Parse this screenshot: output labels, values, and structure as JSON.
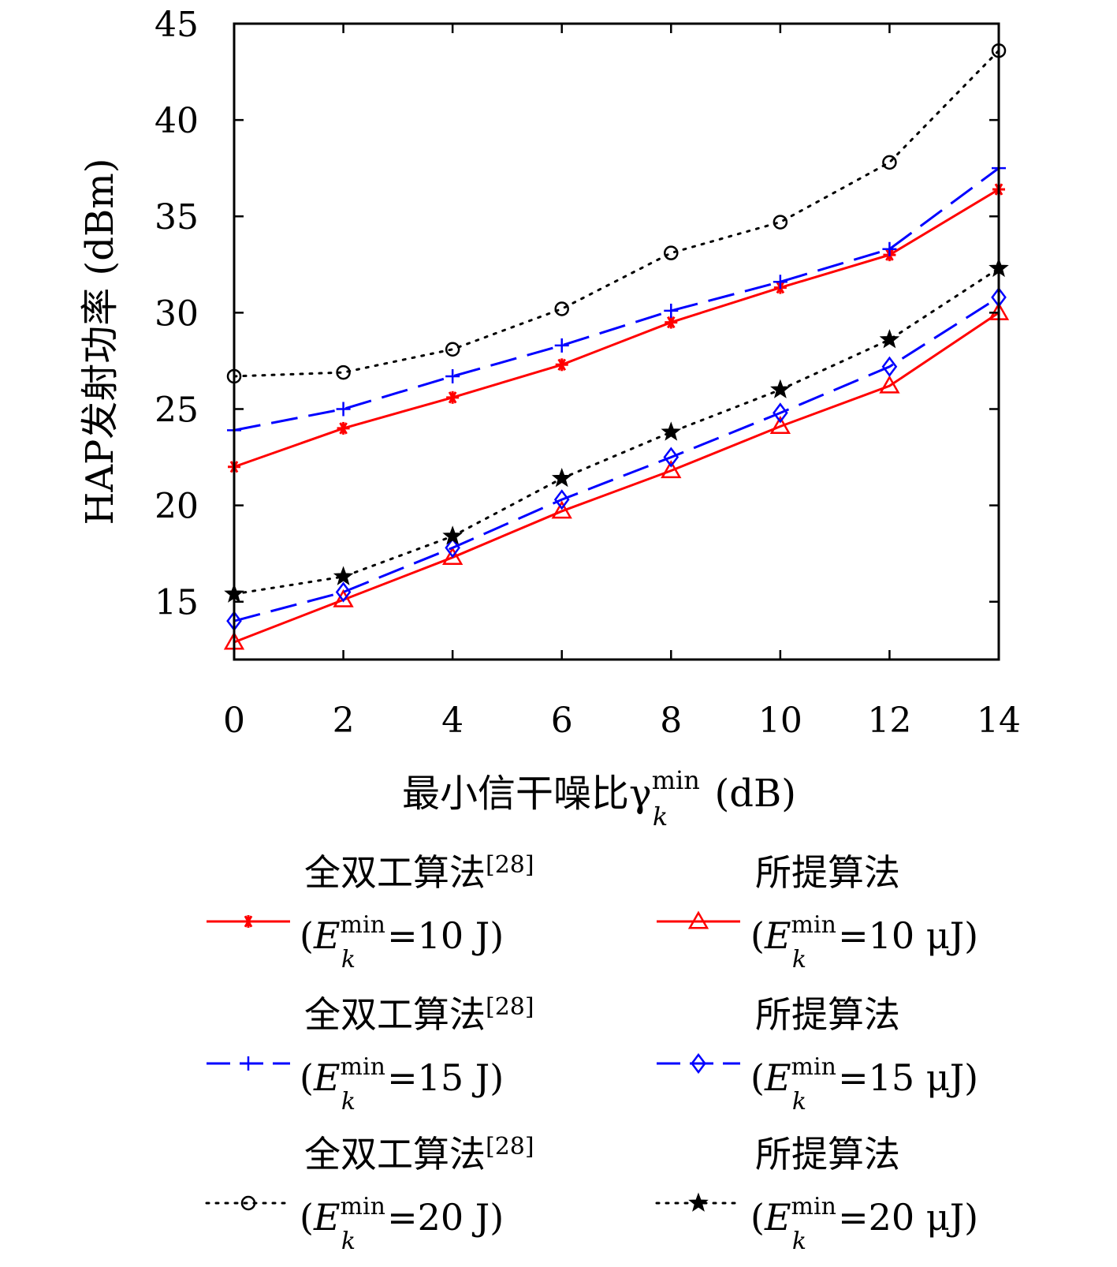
{
  "chart_data": {
    "type": "line",
    "xlabel": "最小信干噪比γ",
    "xlabel_sup": "min",
    "xlabel_sub": "k",
    "xlabel_unit": " (dB)",
    "ylabel": "HAP发射功率 (dBm)",
    "x": [
      0,
      2,
      4,
      6,
      8,
      10,
      12,
      14
    ],
    "xlim": [
      0,
      14
    ],
    "ylim": [
      12,
      45
    ],
    "xticks": [
      0,
      2,
      4,
      6,
      8,
      10,
      12,
      14
    ],
    "yticks": [
      15,
      20,
      25,
      30,
      35,
      40,
      45
    ],
    "grid": false,
    "legend_placement": "below-plot",
    "series": [
      {
        "name_main": "全双工算法",
        "name_ref": "[28]",
        "name_cond_value": "=10 J",
        "color": "#ff0000",
        "linestyle": "solid",
        "marker": "asterisk",
        "values": [
          22.0,
          24.0,
          25.6,
          27.3,
          29.5,
          31.3,
          33.0,
          36.4
        ]
      },
      {
        "name_main": "所提算法",
        "name_ref": "",
        "name_cond_value": "=10 μJ",
        "color": "#ff0000",
        "linestyle": "solid",
        "marker": "triangle",
        "values": [
          12.9,
          15.1,
          17.3,
          19.7,
          21.8,
          24.1,
          26.2,
          30.0
        ]
      },
      {
        "name_main": "全双工算法",
        "name_ref": "[28]",
        "name_cond_value": "=15 J",
        "color": "#0000ff",
        "linestyle": "dashed",
        "marker": "plus",
        "values": [
          23.9,
          25.0,
          26.7,
          28.3,
          30.1,
          31.6,
          33.3,
          37.5
        ]
      },
      {
        "name_main": "所提算法",
        "name_ref": "",
        "name_cond_value": "=15 μJ",
        "color": "#0000ff",
        "linestyle": "dashed",
        "marker": "diamond",
        "values": [
          14.0,
          15.5,
          17.8,
          20.3,
          22.5,
          24.8,
          27.2,
          30.8
        ]
      },
      {
        "name_main": "全双工算法",
        "name_ref": "[28]",
        "name_cond_value": "=20 J",
        "color": "#000000",
        "linestyle": "dotted",
        "marker": "circle",
        "values": [
          26.7,
          26.9,
          28.1,
          30.2,
          33.1,
          34.7,
          37.8,
          43.6
        ]
      },
      {
        "name_main": "所提算法",
        "name_ref": "",
        "name_cond_value": "=20 μJ",
        "color": "#000000",
        "linestyle": "dotted",
        "marker": "star",
        "values": [
          15.4,
          16.3,
          18.4,
          21.4,
          23.8,
          26.0,
          28.6,
          32.3
        ]
      }
    ],
    "legend_cond_symbol": "E",
    "legend_cond_sup": "min",
    "legend_cond_sub": "k"
  }
}
